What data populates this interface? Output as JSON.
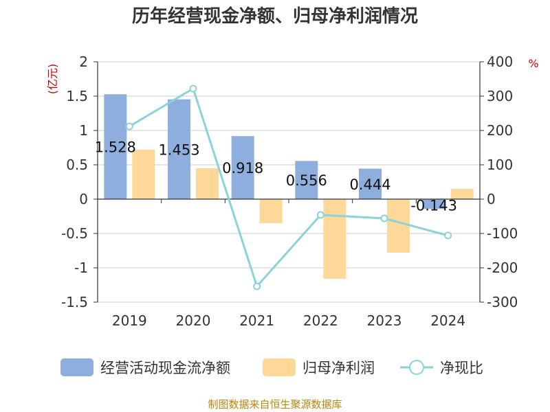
{
  "chart_data": {
    "type": "bar",
    "title": "历年经营现金净额、归母净利润情况",
    "categories": [
      "2019",
      "2020",
      "2021",
      "2022",
      "2023",
      "2024"
    ],
    "y_left": {
      "unit": "(亿元)",
      "range": [
        -1.5,
        2
      ],
      "ticks": [
        "2",
        "1.5",
        "1",
        "0.5",
        "0",
        "-0.5",
        "-1",
        "-1.5"
      ]
    },
    "y_right": {
      "unit": "%",
      "range": [
        -300,
        400
      ],
      "ticks": [
        "400",
        "300",
        "200",
        "100",
        "0",
        "-100",
        "-200",
        "-300"
      ]
    },
    "series": [
      {
        "name": "经营活动现金流净额",
        "type": "bar",
        "axis": "left",
        "color": "#8eaedd",
        "values": [
          1.528,
          1.453,
          0.918,
          0.556,
          0.444,
          -0.143
        ],
        "labels": [
          "1.528",
          "1.453",
          "0.918",
          "0.556",
          "0.444",
          "-0.143"
        ]
      },
      {
        "name": "归母净利润",
        "type": "bar",
        "axis": "left",
        "color": "#fdd898",
        "values": [
          0.72,
          0.45,
          -0.35,
          -1.16,
          -0.78,
          0.15
        ]
      },
      {
        "name": "净现比",
        "type": "line",
        "axis": "right",
        "color": "#8ad3d9",
        "values": [
          212,
          322,
          -254,
          -46,
          -56,
          -106
        ]
      }
    ],
    "grid": true,
    "legend": "bottom"
  },
  "source": "制图数据来自恒生聚源数据库"
}
